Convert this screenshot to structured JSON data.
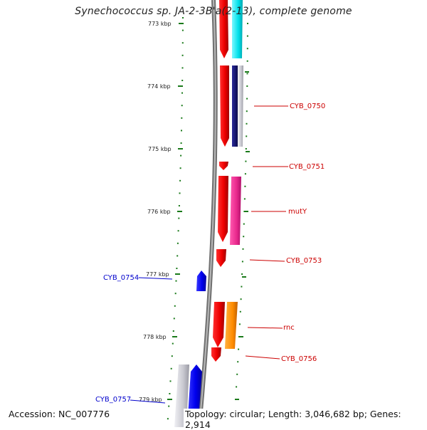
{
  "title": "Synechococcus sp. JA-2-3B'a(2-13), complete genome",
  "accession": "Accession: NC_007776",
  "topology": "Topology: circular; Length: 3,046,682 bp; Genes: 2,914",
  "ticks": [
    {
      "label": "773 kbp",
      "kbp": 773
    },
    {
      "label": "774 kbp",
      "kbp": 774
    },
    {
      "label": "775 kbp",
      "kbp": 775
    },
    {
      "label": "776 kbp",
      "kbp": 776
    },
    {
      "label": "777 kbp",
      "kbp": 777
    },
    {
      "label": "778 kbp",
      "kbp": 778
    },
    {
      "label": "779 kbp",
      "kbp": 779
    }
  ],
  "genes": [
    {
      "name": "CYB_0750",
      "color": "#cc0000"
    },
    {
      "name": "CYB_0751",
      "color": "#cc0000"
    },
    {
      "name": "mutY",
      "color": "#cc0000"
    },
    {
      "name": "CYB_0753",
      "color": "#cc0000"
    },
    {
      "name": "CYB_0754",
      "color": "#0000cc"
    },
    {
      "name": "rnc",
      "color": "#cc0000"
    },
    {
      "name": "CYB_0756",
      "color": "#cc0000"
    },
    {
      "name": "CYB_0757",
      "color": "#0000cc"
    }
  ],
  "colors": {
    "forward_strand": "#ee0000",
    "reverse_strand": "#1a1aff",
    "tick_green": "#1a7a1a",
    "backbone": "#888888",
    "cyan": "#00e5ee",
    "navy": "#1a1a80",
    "magenta": "#e8288c",
    "orange": "#ff8c00",
    "silver": "#c0c0c8"
  }
}
